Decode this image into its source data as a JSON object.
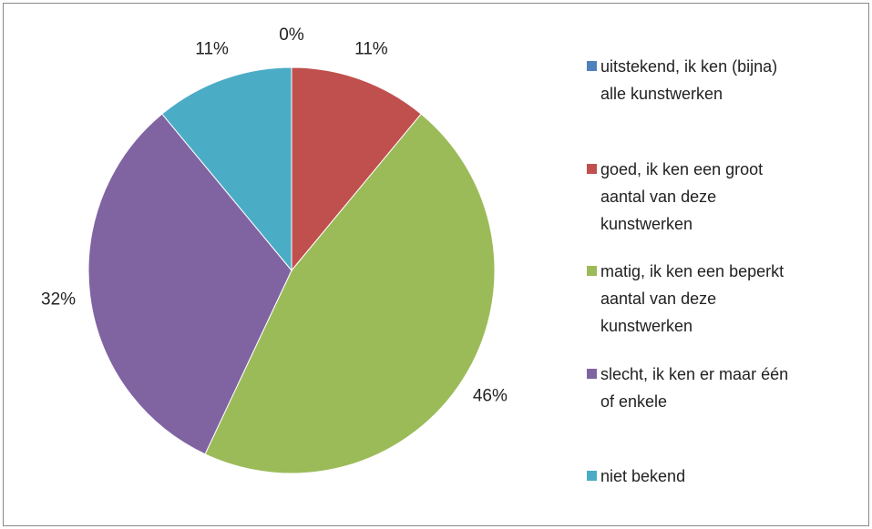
{
  "chart_data": {
    "type": "pie",
    "categories": [
      "uitstekend, ik ken (bijna) alle kunstwerken",
      "goed, ik ken een groot aantal van deze kunstwerken",
      "matig, ik ken een beperkt aantal van deze kunstwerken",
      "slecht, ik ken er maar één of enkele",
      "niet bekend"
    ],
    "values": [
      0,
      11,
      46,
      32,
      11
    ],
    "value_labels": [
      "0%",
      "11%",
      "46%",
      "32%",
      "11%"
    ],
    "colors": [
      "#4f81bd",
      "#c0504d",
      "#9bbb59",
      "#8064a2",
      "#4bacc6"
    ],
    "legend": "right"
  }
}
